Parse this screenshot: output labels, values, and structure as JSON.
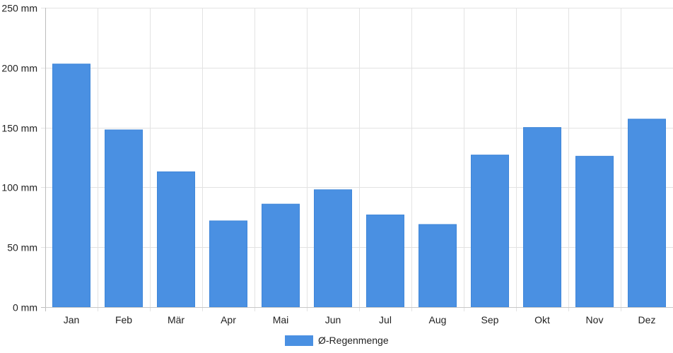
{
  "chart_data": {
    "type": "bar",
    "title": "",
    "xlabel": "",
    "ylabel": "",
    "unit": "mm",
    "categories": [
      "Jan",
      "Feb",
      "Mär",
      "Apr",
      "Mai",
      "Jun",
      "Jul",
      "Aug",
      "Sep",
      "Okt",
      "Nov",
      "Dez"
    ],
    "series": [
      {
        "name": "Ø-Regenmenge",
        "color": "#4a90e2",
        "values": [
          203,
          148,
          113,
          72,
          86,
          98,
          77,
          69,
          127,
          150,
          126,
          157
        ]
      }
    ],
    "ylim": [
      0,
      250
    ],
    "yticks": [
      0,
      50,
      100,
      150,
      200,
      250
    ],
    "ytick_labels": [
      "0 mm",
      "50 mm",
      "100 mm",
      "150 mm",
      "200 mm",
      "250 mm"
    ],
    "grid": true,
    "legend_position": "bottom-center"
  }
}
